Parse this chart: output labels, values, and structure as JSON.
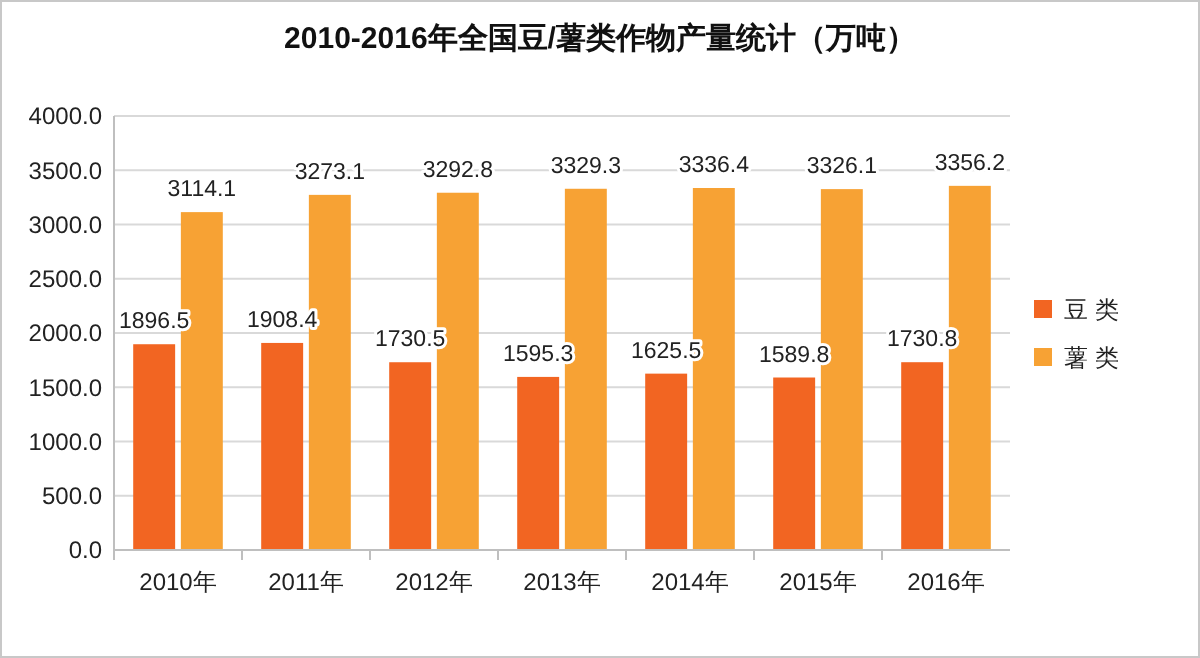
{
  "chart_data": {
    "type": "bar",
    "title": "2010-2016年全国豆/薯类作物产量统计（万吨）",
    "categories": [
      "2010年",
      "2011年",
      "2012年",
      "2013年",
      "2014年",
      "2015年",
      "2016年"
    ],
    "series": [
      {
        "name": "豆 类",
        "color": "#f26522",
        "values": [
          1896.5,
          1908.4,
          1730.5,
          1595.3,
          1625.5,
          1589.8,
          1730.8
        ]
      },
      {
        "name": "薯 类",
        "color": "#f7a234",
        "values": [
          3114.1,
          3273.1,
          3292.8,
          3329.3,
          3336.4,
          3326.1,
          3356.2
        ]
      }
    ],
    "ylim": [
      0,
      4000
    ],
    "yticks": [
      {
        "value": 0,
        "label": "0.0"
      },
      {
        "value": 500,
        "label": "500.0"
      },
      {
        "value": 1000,
        "label": "1000.0"
      },
      {
        "value": 1500,
        "label": "1500.0"
      },
      {
        "value": 2000,
        "label": "2000.0"
      },
      {
        "value": 2500,
        "label": "2500.0"
      },
      {
        "value": 3000,
        "label": "3000.0"
      },
      {
        "value": 3500,
        "label": "3500.0"
      },
      {
        "value": 4000,
        "label": "4000.0"
      }
    ],
    "grid": "y",
    "legend": "right",
    "data_labels": true
  }
}
